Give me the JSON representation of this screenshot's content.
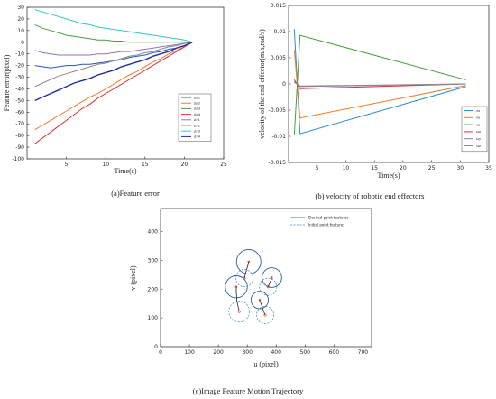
{
  "chart_data": [
    {
      "type": "line",
      "caption": "(a)Feature error",
      "xlabel": "Time(s)",
      "ylabel": "Feature error(pixel)",
      "xlim": [
        0,
        25
      ],
      "ylim": [
        -100,
        30
      ],
      "xticks": [
        5,
        10,
        15,
        20,
        25
      ],
      "yticks": [
        30,
        20,
        10,
        0,
        -10,
        -20,
        -30,
        -40,
        -50,
        -60,
        -70,
        -80,
        -90,
        -100
      ],
      "legend_position": "right-middle",
      "series": [
        {
          "name": "Δu1",
          "color": "#2a54c6",
          "x": [
            1,
            2,
            3,
            4,
            5,
            6,
            7,
            8,
            9,
            10,
            11,
            12,
            13,
            14,
            15,
            16,
            17,
            18,
            19,
            20,
            21
          ],
          "values": [
            -20,
            -21,
            -22,
            -21,
            -20,
            -20,
            -19,
            -19,
            -18,
            -17,
            -16,
            -15,
            -13,
            -12,
            -11,
            -9,
            -8,
            -6,
            -5,
            -3,
            0
          ]
        },
        {
          "name": "Δu2",
          "color": "#f07d2b",
          "x": [
            1,
            2,
            3,
            4,
            5,
            6,
            7,
            8,
            9,
            10,
            11,
            12,
            13,
            14,
            15,
            16,
            17,
            18,
            19,
            20,
            21
          ],
          "values": [
            -75,
            -71,
            -67,
            -63,
            -59,
            -55,
            -51,
            -47,
            -44,
            -40,
            -36,
            -32,
            -28,
            -25,
            -21,
            -17,
            -14,
            -10,
            -7,
            -4,
            0
          ]
        },
        {
          "name": "Δu3",
          "color": "#45a13a",
          "x": [
            1,
            2,
            3,
            4,
            5,
            6,
            7,
            8,
            9,
            10,
            11,
            12,
            13,
            14,
            15,
            16,
            17,
            18,
            19,
            20,
            21
          ],
          "values": [
            15,
            12,
            10,
            8,
            6,
            5,
            4,
            3,
            2,
            2,
            1,
            1,
            0,
            0,
            0,
            0,
            0,
            0,
            0,
            0,
            0
          ]
        },
        {
          "name": "Δu4",
          "color": "#d8323a",
          "x": [
            1,
            2,
            3,
            4,
            5,
            6,
            7,
            8,
            9,
            10,
            11,
            12,
            13,
            14,
            15,
            16,
            17,
            18,
            19,
            20,
            21
          ],
          "values": [
            -87,
            -82,
            -77,
            -72,
            -67,
            -62,
            -57,
            -53,
            -48,
            -44,
            -40,
            -36,
            -32,
            -28,
            -24,
            -20,
            -16,
            -12,
            -8,
            -4,
            0
          ]
        },
        {
          "name": "Δv1",
          "color": "#9a6fc4",
          "x": [
            1,
            2,
            3,
            4,
            5,
            6,
            7,
            8,
            9,
            10,
            11,
            12,
            13,
            14,
            15,
            16,
            17,
            18,
            19,
            20,
            21
          ],
          "values": [
            -7,
            -9,
            -10,
            -11,
            -11,
            -11,
            -11,
            -11,
            -10,
            -10,
            -9,
            -8,
            -8,
            -7,
            -6,
            -5,
            -4,
            -3,
            -2,
            -1,
            0
          ]
        },
        {
          "name": "Δv2",
          "color": "#8a8a8a",
          "x": [
            1,
            2,
            3,
            4,
            5,
            6,
            7,
            8,
            9,
            10,
            11,
            12,
            13,
            14,
            15,
            16,
            17,
            18,
            19,
            20,
            21
          ],
          "values": [
            -38,
            -35,
            -32,
            -29,
            -27,
            -25,
            -23,
            -21,
            -19,
            -18,
            -16,
            -14,
            -12,
            -11,
            -9,
            -8,
            -6,
            -4,
            -3,
            -1,
            0
          ]
        },
        {
          "name": "Δv3",
          "color": "#2ec8c8",
          "x": [
            1,
            2,
            3,
            4,
            5,
            6,
            7,
            8,
            9,
            10,
            11,
            12,
            13,
            14,
            15,
            16,
            17,
            18,
            19,
            20,
            21
          ],
          "values": [
            28,
            26,
            24,
            22,
            20,
            18,
            16,
            15,
            13,
            12,
            11,
            10,
            9,
            8,
            7,
            6,
            5,
            4,
            3,
            2,
            0
          ]
        },
        {
          "name": "Δv4",
          "color": "#1f2f9e",
          "x": [
            1,
            2,
            3,
            4,
            5,
            6,
            7,
            8,
            9,
            10,
            11,
            12,
            13,
            14,
            15,
            16,
            17,
            18,
            19,
            20,
            21
          ],
          "values": [
            -50,
            -47,
            -44,
            -41,
            -38,
            -35,
            -33,
            -31,
            -28,
            -26,
            -24,
            -21,
            -19,
            -17,
            -15,
            -12,
            -10,
            -8,
            -5,
            -3,
            0
          ]
        }
      ]
    },
    {
      "type": "line",
      "caption": "(b) velocity of robotic end effectors",
      "xlabel": "Time(s)",
      "ylabel": "velocity of the end-effector(m/s,rad/s)",
      "xlim": [
        0,
        35
      ],
      "ylim": [
        -0.015,
        0.015
      ],
      "xticks": [
        5,
        10,
        15,
        20,
        25,
        30,
        35
      ],
      "yticks": [
        0.015,
        0.01,
        0.005,
        0,
        -0.005,
        -0.01,
        -0.015
      ],
      "ytick_labels": [
        "0.015",
        "0.01",
        "0.005",
        "0",
        "-0.005",
        "-0.01",
        "-0.015"
      ],
      "legend_position": "bottom-right",
      "series": [
        {
          "name": "vx",
          "color": "#2a8fd6",
          "x": [
            1,
            2,
            31
          ],
          "values": [
            0.0105,
            -0.0095,
            -0.0005
          ]
        },
        {
          "name": "vy",
          "color": "#f07d2b",
          "x": [
            1,
            2,
            31
          ],
          "values": [
            0.0065,
            -0.0065,
            -0.0003
          ]
        },
        {
          "name": "vz",
          "color": "#45a13a",
          "x": [
            1,
            2,
            31
          ],
          "values": [
            -0.0098,
            0.0093,
            0.0008
          ]
        },
        {
          "name": "ωx",
          "color": "#d8323a",
          "x": [
            1,
            2,
            31
          ],
          "values": [
            0.0008,
            -0.0009,
            0.0
          ]
        },
        {
          "name": "ωy",
          "color": "#9a6fc4",
          "x": [
            1,
            2,
            31
          ],
          "values": [
            0.0005,
            -0.0005,
            0.0
          ]
        },
        {
          "name": "ωz",
          "color": "#8a8a8a",
          "x": [
            1,
            2,
            31
          ],
          "values": [
            0.0003,
            -0.0004,
            0.0
          ]
        }
      ]
    },
    {
      "type": "scatter",
      "caption": "(c)Image Feature Motion Trajectory",
      "xlabel": "u (pixel)",
      "ylabel": "v (pixel)",
      "xlim": [
        0,
        730
      ],
      "ylim": [
        0,
        480
      ],
      "xticks": [
        0,
        100,
        200,
        300,
        400,
        500,
        600,
        700
      ],
      "yticks": [
        0,
        100,
        200,
        300,
        400
      ],
      "legend": [
        "Desired point features",
        "Initial point features"
      ],
      "legend_position": "top-right",
      "desired_color": "#2c5a9e",
      "initial_color": "#3a86c8",
      "features": [
        {
          "desired": [
            305,
            295
          ],
          "initial": [
            290,
            238
          ],
          "desired_r": 42,
          "initial_r": 30,
          "path": [
            [
              290,
              238
            ],
            [
              296,
              262
            ],
            [
              302,
              282
            ],
            [
              305,
              295
            ]
          ]
        },
        {
          "desired": [
            262,
            208
          ],
          "initial": [
            272,
            122
          ],
          "desired_r": 38,
          "initial_r": 36,
          "path": [
            [
              272,
              122
            ],
            [
              264,
              160
            ],
            [
              262,
              190
            ],
            [
              262,
              208
            ]
          ]
        },
        {
          "desired": [
            385,
            240
          ],
          "initial": [
            372,
            208
          ],
          "desired_r": 34,
          "initial_r": 30,
          "path": [
            [
              372,
              208
            ],
            [
              378,
              222
            ],
            [
              383,
              234
            ],
            [
              385,
              240
            ]
          ]
        },
        {
          "desired": [
            343,
            162
          ],
          "initial": [
            362,
            110
          ],
          "desired_r": 30,
          "initial_r": 30,
          "path": [
            [
              362,
              110
            ],
            [
              354,
              130
            ],
            [
              348,
              148
            ],
            [
              343,
              162
            ]
          ]
        }
      ]
    }
  ]
}
